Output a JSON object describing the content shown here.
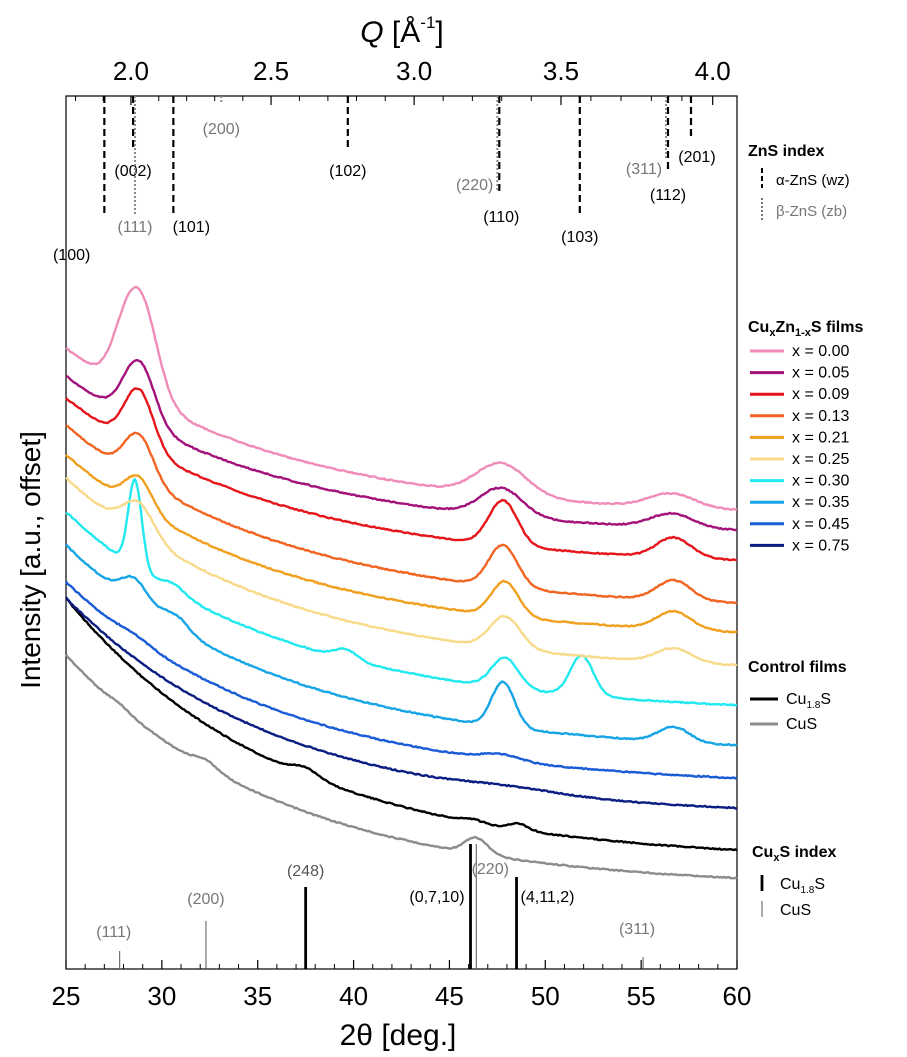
{
  "chart_data": {
    "type": "line",
    "xlabel": "2θ [deg.]",
    "ylabel": "Intensity [a.u., offset]",
    "top_axis": {
      "label_main": "Q",
      "label_unit": " [Å",
      "label_sup": "-1",
      "label_close": "]",
      "ticks": [
        "2.0",
        "2.5",
        "3.0",
        "3.5",
        "4.0"
      ]
    },
    "xlim": [
      25,
      60
    ],
    "x_ticks": [
      25,
      30,
      35,
      40,
      45,
      50,
      55,
      60
    ],
    "zns_index": {
      "title": "ZnS index",
      "legend": [
        {
          "label": "α-ZnS (wz)",
          "color": "#000000",
          "style": "dashed"
        },
        {
          "label": "β-ZnS (zb)",
          "color": "#777777",
          "style": "dotted"
        }
      ],
      "alpha": [
        {
          "label": "(100)",
          "x": 27.0
        },
        {
          "label": "(002)",
          "x": 28.5
        },
        {
          "label": "(101)",
          "x": 30.6
        },
        {
          "label": "(102)",
          "x": 39.7
        },
        {
          "label": "(110)",
          "x": 47.6
        },
        {
          "label": "(103)",
          "x": 51.8
        },
        {
          "label": "(112)",
          "x": 56.4
        },
        {
          "label": "(201)",
          "x": 57.6
        }
      ],
      "beta": [
        {
          "label": "(111)",
          "x": 28.6
        },
        {
          "label": "(200)",
          "x": 33.1
        },
        {
          "label": "(220)",
          "x": 47.5
        },
        {
          "label": "(311)",
          "x": 56.3
        }
      ]
    },
    "films_legend": {
      "title_prefix": "Cu",
      "title_sub1": "x",
      "title_mid": "Zn",
      "title_sub2": "1-x",
      "title_suffix": "S films"
    },
    "series": [
      {
        "name": "x = 0.00",
        "color": "#f08cb8",
        "base": 348,
        "tail": 510,
        "main_peak": 28.8,
        "main_h": 105,
        "main_w": 0.9,
        "peaks": [
          [
            47.7,
            32,
            1.3
          ],
          [
            56.6,
            14,
            1.2
          ],
          [
            27.8,
            12,
            0.6
          ]
        ]
      },
      {
        "name": "x = 0.05",
        "color": "#a3127a",
        "base": 376,
        "tail": 530,
        "main_peak": 28.8,
        "main_h": 62,
        "main_w": 0.8,
        "peaks": [
          [
            47.7,
            28,
            1.1
          ],
          [
            56.6,
            14,
            1.1
          ]
        ]
      },
      {
        "name": "x = 0.09",
        "color": "#e5151b",
        "base": 398,
        "tail": 560,
        "main_peak": 28.8,
        "main_h": 58,
        "main_w": 0.75,
        "peaks": [
          [
            47.8,
            45,
            0.75
          ],
          [
            56.7,
            20,
            0.9
          ]
        ]
      },
      {
        "name": "x = 0.13",
        "color": "#f26421",
        "base": 425,
        "tail": 603,
        "main_peak": 28.8,
        "main_h": 45,
        "main_w": 0.75,
        "peaks": [
          [
            47.8,
            42,
            0.75
          ],
          [
            56.7,
            20,
            0.9
          ]
        ]
      },
      {
        "name": "x = 0.21",
        "color": "#f0a01e",
        "base": 455,
        "tail": 632,
        "main_peak": 28.8,
        "main_h": 32,
        "main_w": 0.7,
        "peaks": [
          [
            47.9,
            35,
            0.7
          ],
          [
            56.7,
            18,
            0.9
          ]
        ]
      },
      {
        "name": "x = 0.25",
        "color": "#f9d98a",
        "base": 478,
        "tail": 665,
        "main_peak": 28.8,
        "main_h": 32,
        "main_w": 0.8,
        "peaks": [
          [
            47.9,
            32,
            0.8
          ],
          [
            56.7,
            14,
            0.9
          ]
        ]
      },
      {
        "name": "x = 0.30",
        "color": "#22e8f0",
        "base": 512,
        "tail": 705,
        "main_peak": 28.6,
        "main_h": 88,
        "main_w": 0.35,
        "peaks": [
          [
            47.9,
            30,
            0.7
          ],
          [
            51.9,
            40,
            0.6
          ],
          [
            39.6,
            10,
            0.6
          ],
          [
            30.6,
            8,
            0.6
          ]
        ]
      },
      {
        "name": "x = 0.35",
        "color": "#17a5e6",
        "base": 545,
        "tail": 745,
        "main_peak": 28.6,
        "main_h": 24,
        "main_w": 0.7,
        "peaks": [
          [
            47.8,
            45,
            0.6
          ],
          [
            56.7,
            15,
            0.8
          ],
          [
            30.7,
            14,
            0.7
          ]
        ]
      },
      {
        "name": "x = 0.45",
        "color": "#1a5bd6",
        "base": 582,
        "tail": 778,
        "main_peak": 28.6,
        "main_h": 4,
        "main_w": 0.8,
        "peaks": [
          [
            47.7,
            6,
            1.0
          ]
        ]
      },
      {
        "name": "x = 0.75",
        "color": "#0b1d82",
        "base": 598,
        "tail": 808,
        "main_peak": 29.0,
        "main_h": 0,
        "main_w": 0.8,
        "peaks": [
          [
            48.2,
            4,
            2.5
          ]
        ]
      }
    ],
    "control_legend": {
      "title": "Control films"
    },
    "control_series": [
      {
        "name": "Cu",
        "name_sub": "1.8",
        "name_suffix": "S",
        "color": "#000000",
        "base": 598,
        "tail": 850,
        "main_peak": 37.5,
        "main_h": 8,
        "main_w": 0.7,
        "peaks": [
          [
            48.6,
            6,
            0.5
          ],
          [
            46.2,
            3,
            0.5
          ]
        ]
      },
      {
        "name": "CuS",
        "name_sub": "",
        "name_suffix": "",
        "color": "#8c8c8c",
        "base": 655,
        "tail": 878,
        "main_peak": 46.4,
        "main_h": 16,
        "main_w": 0.6,
        "peaks": [
          [
            32.3,
            7,
            0.6
          ],
          [
            27.8,
            3,
            0.5
          ]
        ]
      }
    ],
    "cuxs_index": {
      "title_prefix": "Cu",
      "title_sub": "x",
      "title_suffix": "S index",
      "legend": [
        {
          "name": "Cu",
          "name_sub": "1.8",
          "name_suffix": "S",
          "color": "#000000",
          "width": 3
        },
        {
          "name": "CuS",
          "name_sub": "",
          "name_suffix": "",
          "color": "#555555",
          "width": 1
        }
      ],
      "cu18s": [
        {
          "label": "(248)",
          "x": 37.5,
          "h": 82
        },
        {
          "label": "(0,7,10)",
          "x": 46.1,
          "h": 125
        },
        {
          "label": "(4,11,2)",
          "x": 48.5,
          "h": 92
        }
      ],
      "cus": [
        {
          "label": "(111)",
          "x": 27.8,
          "h": 18
        },
        {
          "label": "(200)",
          "x": 32.3,
          "h": 48
        },
        {
          "label": "(220)",
          "x": 46.4,
          "h": 125
        },
        {
          "label": "(311)",
          "x": 55.1,
          "h": 12
        }
      ]
    }
  }
}
